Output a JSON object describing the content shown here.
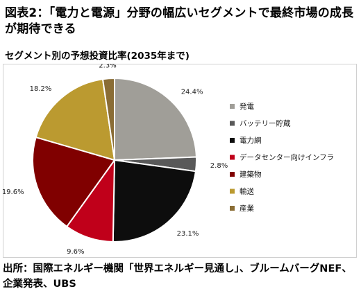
{
  "title": "図表2：「電力と電源」分野の幅広いセグメントで最終市場の成長が期待できる",
  "subtitle": "セグメント別の予想投資比率(2035年まで)",
  "source": "出所：国際エネルギー機関「世界エネルギー見通し」、ブルームバーグNEF、企業発表、UBS",
  "colors": {
    "発電": "#a09e98",
    "バッテリー貯蔵": "#595959",
    "電力網": "#0d0d0d",
    "データセンター向けインフラ": "#c0001a",
    "建築物": "#800000",
    "輸送": "#bb9a30",
    "産業": "#8a6d35"
  },
  "chart_data": {
    "type": "pie",
    "title": "セグメント別の予想投資比率(2035年まで)",
    "legend_position": "right",
    "start": "12 o'clock",
    "direction": "clockwise",
    "slices": [
      {
        "label": "発電",
        "value": 24.4,
        "value_label": "24.4%"
      },
      {
        "label": "バッテリー貯蔵",
        "value": 2.8,
        "value_label": "2.8%"
      },
      {
        "label": "電力網",
        "value": 23.1,
        "value_label": "23.1%"
      },
      {
        "label": "データセンター向けインフラ",
        "value": 9.6,
        "value_label": "9.6%"
      },
      {
        "label": "建築物",
        "value": 19.6,
        "value_label": "19.6%"
      },
      {
        "label": "輸送",
        "value": 18.2,
        "value_label": "18.2%"
      },
      {
        "label": "産業",
        "value": 2.3,
        "value_label": "2.3%"
      }
    ]
  }
}
